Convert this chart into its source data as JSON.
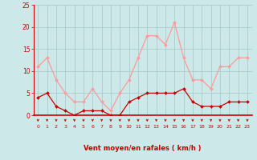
{
  "hours": [
    0,
    1,
    2,
    3,
    4,
    5,
    6,
    7,
    8,
    9,
    10,
    11,
    12,
    13,
    14,
    15,
    16,
    17,
    18,
    19,
    20,
    21,
    22,
    23
  ],
  "wind_avg": [
    4,
    5,
    2,
    1,
    0,
    1,
    1,
    1,
    0,
    0,
    3,
    4,
    5,
    5,
    5,
    5,
    6,
    3,
    2,
    2,
    2,
    3,
    3,
    3
  ],
  "wind_gust": [
    11,
    13,
    8,
    5,
    3,
    3,
    6,
    3,
    1,
    5,
    8,
    13,
    18,
    18,
    16,
    21,
    13,
    8,
    8,
    6,
    11,
    11,
    13,
    13
  ],
  "bg_color": "#cce8e8",
  "grid_color": "#aacccc",
  "avg_color": "#cc0000",
  "gust_color": "#ff9999",
  "xlabel": "Vent moyen/en rafales ( km/h )",
  "xlabel_color": "#cc0000",
  "tick_color": "#cc0000",
  "ylim": [
    0,
    25
  ],
  "yticks": [
    0,
    5,
    10,
    15,
    20,
    25
  ],
  "ytick_labels": [
    "0",
    "5",
    "10",
    "15",
    "20",
    "25"
  ]
}
